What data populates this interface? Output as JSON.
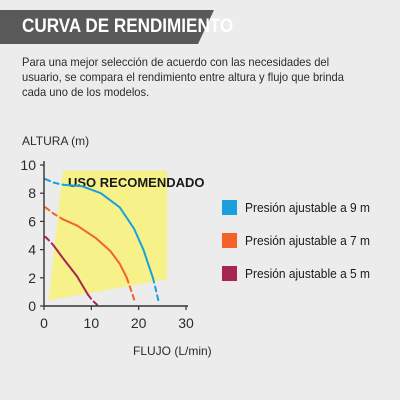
{
  "header": {
    "title": "CURVA DE RENDIMIENTO"
  },
  "description": "Para una mejor selección de acuerdo con las necesidades del usuario, se compara el rendimiento entre altura y flujo que brinda cada uno de los modelos.",
  "chart_data": {
    "type": "line",
    "ylabel": "ALTURA (m)",
    "xlabel": "FLUJO (L/min)",
    "xlim": [
      0,
      30
    ],
    "ylim": [
      0,
      10
    ],
    "x_ticks": [
      0,
      10,
      20,
      30
    ],
    "y_ticks": [
      0,
      2,
      4,
      6,
      8,
      10
    ],
    "grid": false,
    "region": {
      "label": "USO RECOMENDADO",
      "color": "#f7f18a",
      "polygon": [
        [
          1,
          0.4
        ],
        [
          26,
          1.9
        ],
        [
          26,
          9.6
        ],
        [
          4,
          9.6
        ]
      ]
    },
    "series": [
      {
        "name": "Presión ajustable a 9 m",
        "color": "#1aa0dc",
        "dashed_head": [
          [
            0.3,
            9.0
          ],
          [
            2,
            8.75
          ],
          [
            4,
            8.6
          ]
        ],
        "solid": [
          [
            4,
            8.6
          ],
          [
            8,
            8.5
          ],
          [
            12,
            8.0
          ],
          [
            16,
            7.0
          ],
          [
            19,
            5.5
          ],
          [
            21,
            4.0
          ],
          [
            22,
            3.0
          ],
          [
            23,
            2.0
          ]
        ],
        "dashed_tail": [
          [
            23,
            2.0
          ],
          [
            23.6,
            1.2
          ],
          [
            24.3,
            0.2
          ]
        ]
      },
      {
        "name": "Presión ajustable a 7 m",
        "color": "#f4622a",
        "dashed_head": [
          [
            0.3,
            7.0
          ],
          [
            2,
            6.55
          ],
          [
            4,
            6.15
          ]
        ],
        "solid": [
          [
            4,
            6.15
          ],
          [
            7,
            5.7
          ],
          [
            11,
            4.8
          ],
          [
            14,
            3.9
          ],
          [
            16,
            3.0
          ],
          [
            17.5,
            2.0
          ]
        ],
        "dashed_tail": [
          [
            17.5,
            2.0
          ],
          [
            18.5,
            1.0
          ],
          [
            19.3,
            0.2
          ]
        ]
      },
      {
        "name": "Presión ajustable a 5 m",
        "color": "#a7264f",
        "dashed_head": [
          [
            0.3,
            4.9
          ],
          [
            1.2,
            4.6
          ],
          [
            2,
            4.3
          ]
        ],
        "solid": [
          [
            2,
            4.3
          ],
          [
            4,
            3.4
          ],
          [
            7,
            2.1
          ],
          [
            9.3,
            0.8
          ]
        ],
        "dashed_tail": [
          [
            9.3,
            0.8
          ],
          [
            10.2,
            0.4
          ],
          [
            11.2,
            0.1
          ]
        ]
      }
    ]
  }
}
